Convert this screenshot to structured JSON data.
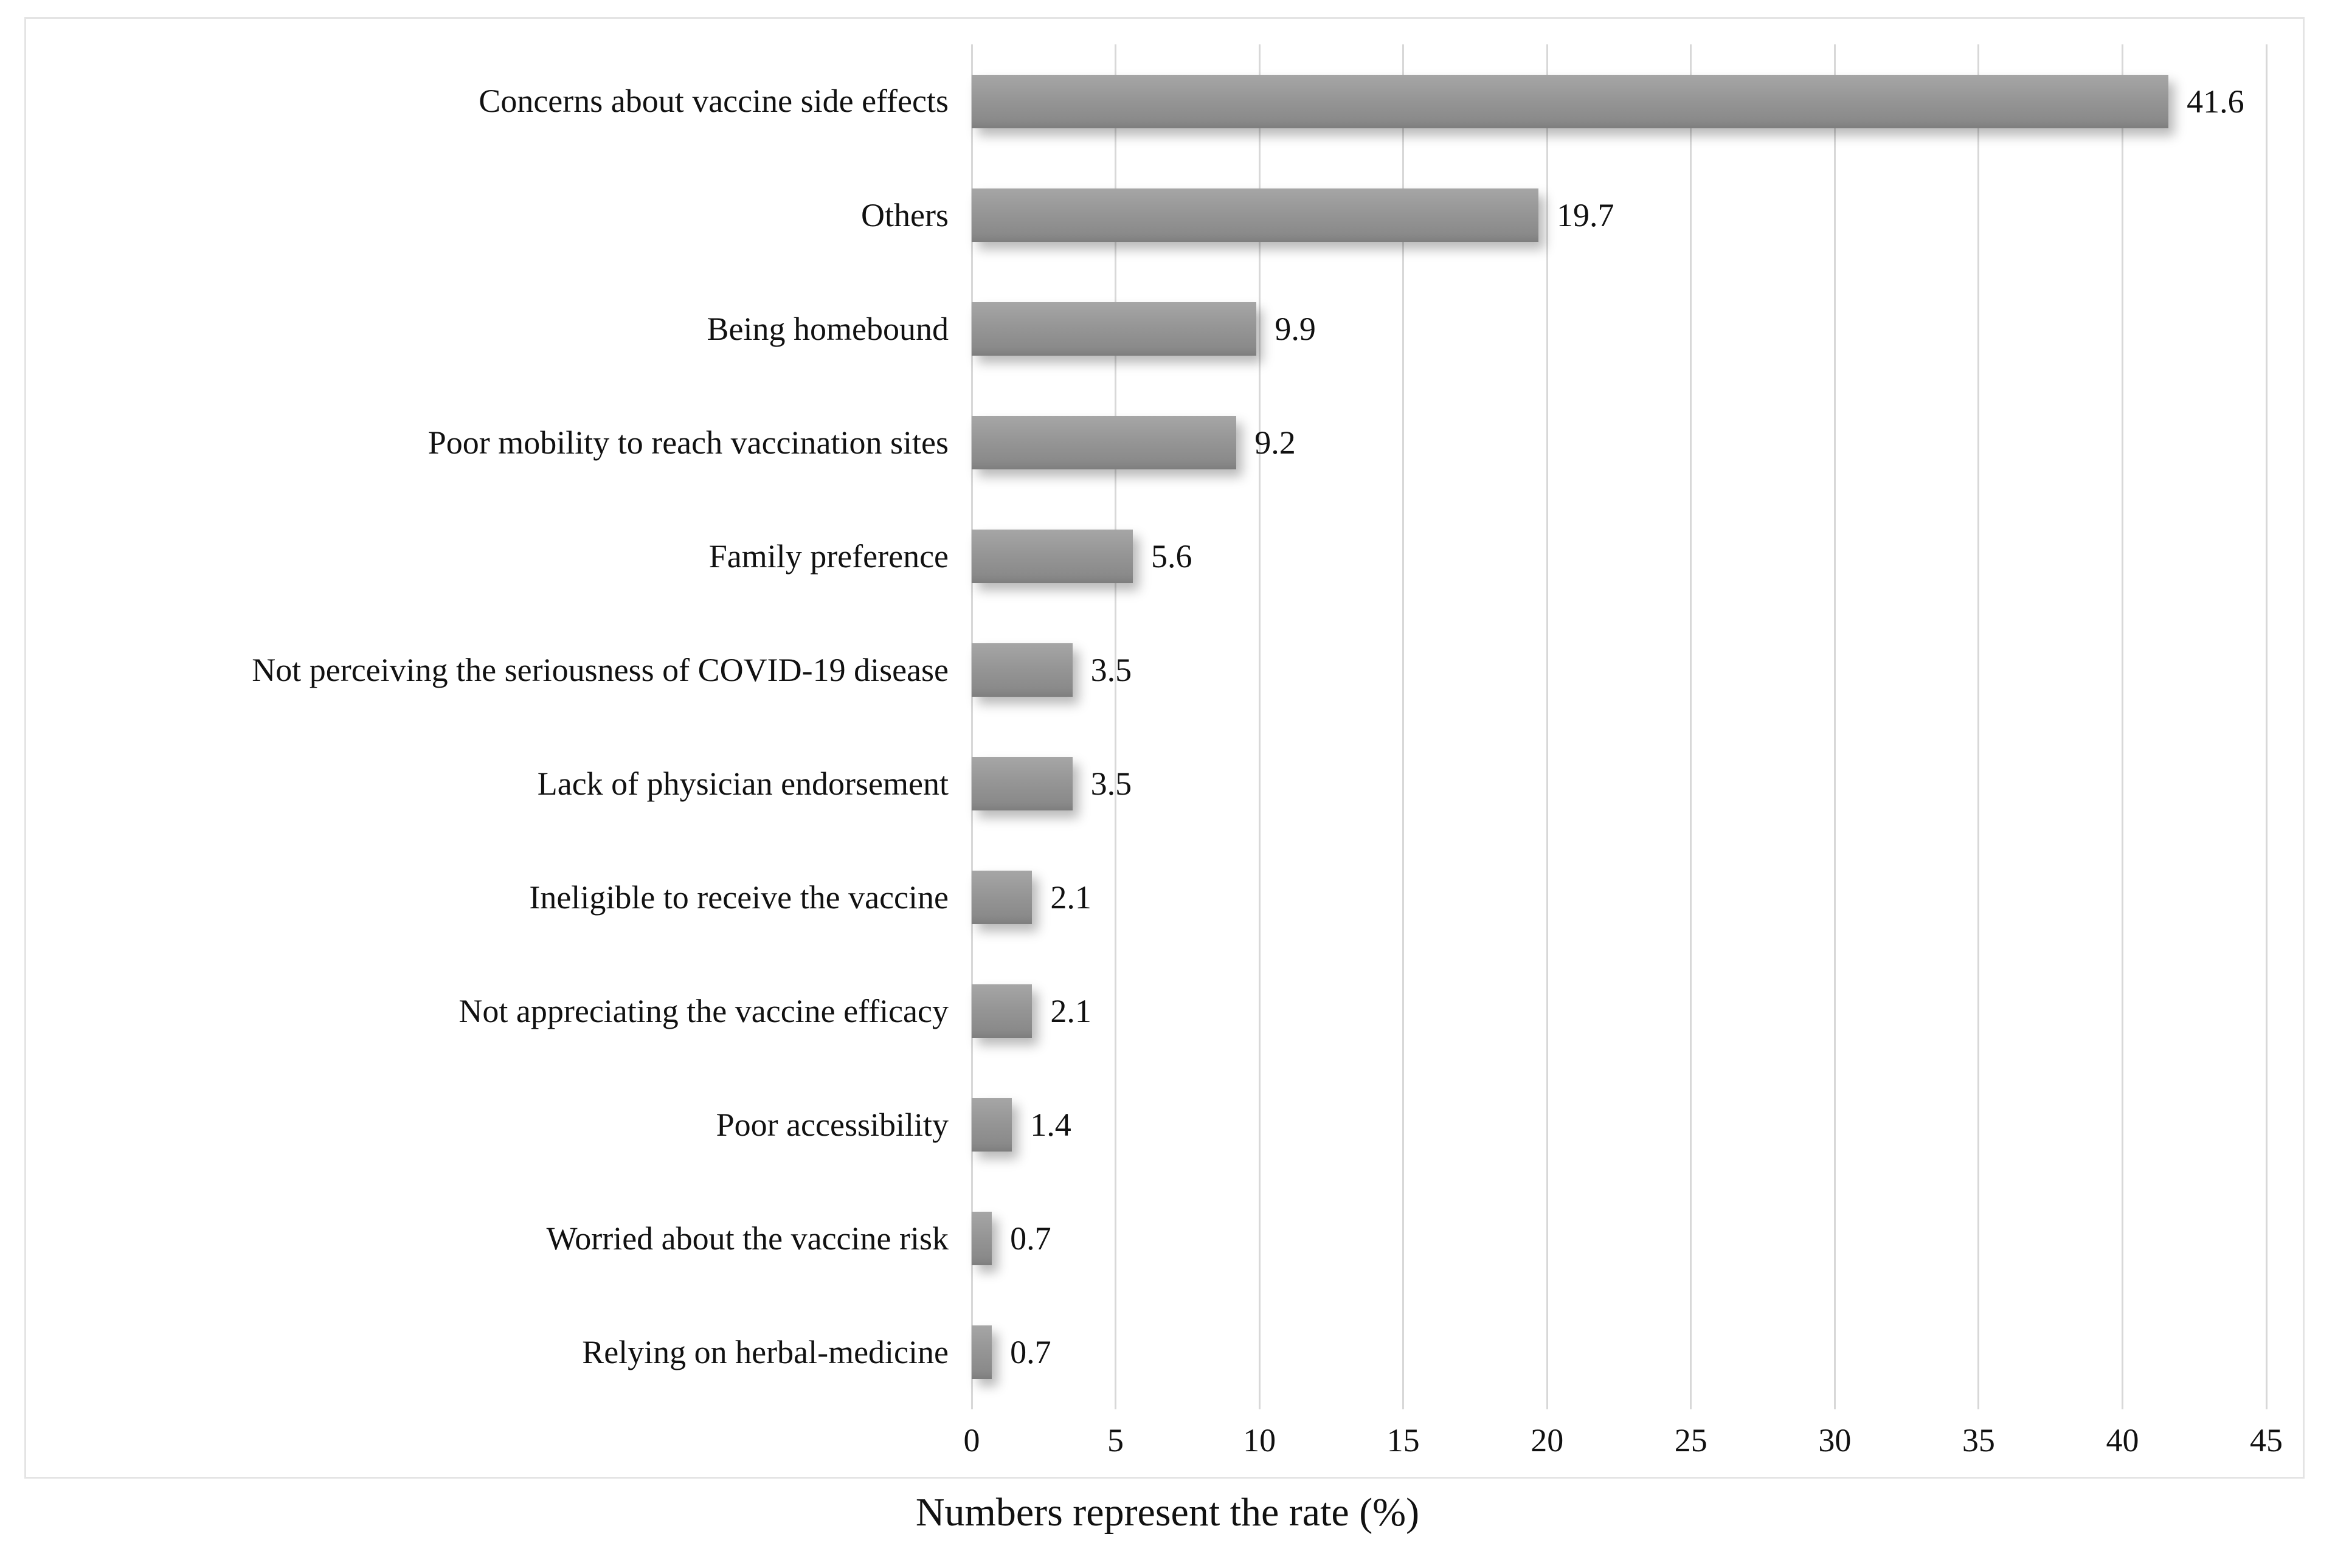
{
  "chart_data": {
    "type": "bar",
    "orientation": "horizontal",
    "title": "",
    "categories": [
      "Concerns about vaccine side effects",
      "Others",
      "Being homebound",
      "Poor mobility to reach vaccination sites",
      "Family preference",
      "Not perceiving the seriousness of COVID-19 disease",
      "Lack of physician endorsement",
      "Ineligible to receive the vaccine",
      "Not appreciating the vaccine efficacy",
      "Poor accessibility",
      "Worried about the vaccine risk",
      "Relying on herbal-medicine"
    ],
    "values": [
      41.6,
      19.7,
      9.9,
      9.2,
      5.6,
      3.5,
      3.5,
      2.1,
      2.1,
      1.4,
      0.7,
      0.7
    ],
    "value_labels": [
      "41.6",
      "19.7",
      "9.9",
      "9.2",
      "5.6",
      "3.5",
      "3.5",
      "2.1",
      "2.1",
      "1.4",
      "0.7",
      "0.7"
    ],
    "xlabel": "Numbers represent the rate (%)",
    "ylabel": "",
    "xlim": [
      0,
      45
    ],
    "xticks": [
      0,
      5,
      10,
      15,
      20,
      25,
      30,
      35,
      40,
      45
    ],
    "xtick_labels": [
      "0",
      "5",
      "10",
      "15",
      "20",
      "25",
      "30",
      "35",
      "40",
      "45"
    ],
    "grid": "vertical-gridlines",
    "legend": "none",
    "bar_color": "#949494",
    "gridline_color": "#d8d8d8",
    "frame_border_color": "#e4e4e4",
    "text_color": "#111111"
  }
}
